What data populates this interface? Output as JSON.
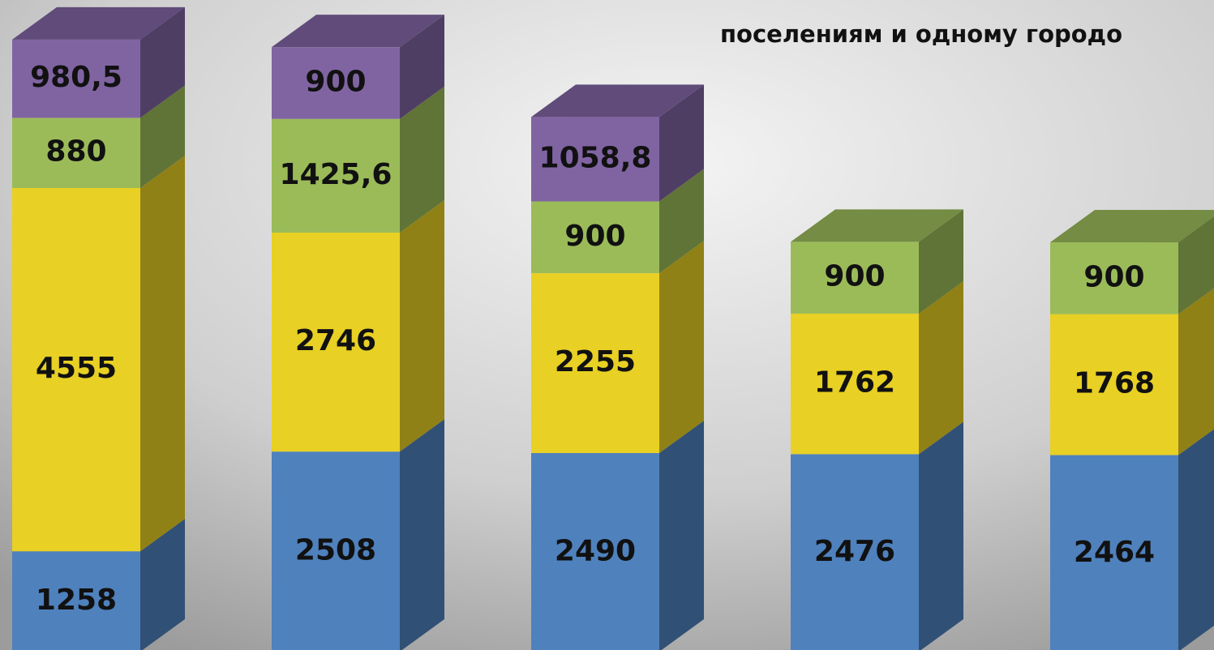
{
  "chart_data": {
    "type": "bar3d_stacked",
    "title": "поселениям и одному городо",
    "series": [
      {
        "color": "#4f81bd",
        "values": [
          1258,
          2508,
          2490,
          2476,
          2464
        ]
      },
      {
        "color": "#e8d024",
        "values": [
          4555,
          2746,
          2255,
          1762,
          1768
        ]
      },
      {
        "color": "#9bbb59",
        "values": [
          880,
          1425.6,
          900,
          900,
          900
        ],
        "value_labels": [
          "880",
          "1425,6",
          "900",
          "900",
          "900"
        ]
      },
      {
        "color": "#8064a2",
        "values": [
          980.5,
          900,
          1058.8,
          null,
          null
        ],
        "value_labels": [
          "980,5",
          "900",
          "1058,8",
          null,
          null
        ]
      }
    ]
  }
}
